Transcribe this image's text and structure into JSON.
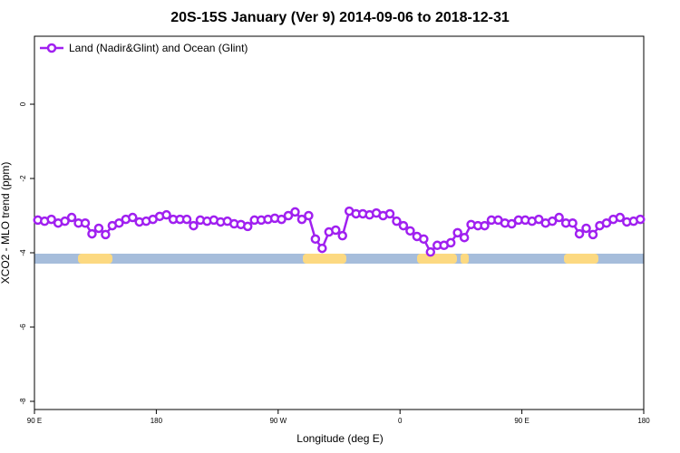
{
  "chart_data": {
    "type": "line",
    "title": "20S-15S January (Ver 9)   2014-09-06 to 2018-12-31",
    "x_label": "Longitude (deg E)",
    "y_label": "XCO2 - MLO trend (ppm)",
    "xlim": [
      90,
      540
    ],
    "ylim": [
      -8.22,
      1.83
    ],
    "xticks": [
      {
        "value": 90,
        "label": "90 E"
      },
      180,
      {
        "value": 270,
        "label": "90 W"
      },
      {
        "value": 360,
        "label": "0"
      },
      {
        "value": 450,
        "label": "90 E"
      },
      {
        "value": 540,
        "label": "180"
      }
    ],
    "yticks": [
      0,
      -2,
      -4,
      -6,
      -8
    ],
    "legend": "top-left",
    "x": [
      92.5,
      97.5,
      102.5,
      107.5,
      112.5,
      117.5,
      122.5,
      127.5,
      132.5,
      137.5,
      142.5,
      147.5,
      152.5,
      157.5,
      162.5,
      167.5,
      172.5,
      177.5,
      182.5,
      187.5,
      192.5,
      197.5,
      202.5,
      207.5,
      212.5,
      217.5,
      222.5,
      227.5,
      232.5,
      237.5,
      242.5,
      247.5,
      252.5,
      257.5,
      262.5,
      267.5,
      272.5,
      277.5,
      282.5,
      287.5,
      292.5,
      297.5,
      302.5,
      307.5,
      312.5,
      317.5,
      322.5,
      327.5,
      332.5,
      337.5,
      342.5,
      347.5,
      352.5,
      357.5,
      362.5,
      367.5,
      372.5,
      377.5,
      382.5,
      387.5,
      392.5,
      397.5,
      402.5,
      407.5,
      412.5,
      417.5,
      422.5,
      427.5,
      432.5,
      437.5,
      442.5,
      447.5,
      452.5,
      457.5,
      462.5,
      467.5,
      472.5,
      477.5,
      482.5,
      487.5,
      492.5,
      497.5,
      502.5,
      507.5,
      512.5,
      517.5,
      522.5,
      527.5,
      532.5,
      537.5
    ],
    "series": [
      {
        "name": "Land (Nadir&Glint) and Ocean (Glint)",
        "color": "#a020f0",
        "values": [
          -3.12,
          -3.15,
          -3.1,
          -3.2,
          -3.15,
          -3.05,
          -3.2,
          -3.2,
          -3.49,
          -3.34,
          -3.51,
          -3.27,
          -3.2,
          -3.1,
          -3.05,
          -3.17,
          -3.15,
          -3.1,
          -3.02,
          -2.98,
          -3.1,
          -3.1,
          -3.1,
          -3.27,
          -3.12,
          -3.15,
          -3.12,
          -3.17,
          -3.15,
          -3.22,
          -3.24,
          -3.29,
          -3.12,
          -3.12,
          -3.1,
          -3.07,
          -3.1,
          -3.0,
          -2.9,
          -3.1,
          -3.0,
          -3.63,
          -3.88,
          -3.44,
          -3.39,
          -3.54,
          -2.88,
          -2.95,
          -2.95,
          -2.98,
          -2.93,
          -3.0,
          -2.95,
          -3.15,
          -3.27,
          -3.41,
          -3.56,
          -3.63,
          -3.98,
          -3.8,
          -3.8,
          -3.73,
          -3.46,
          -3.59,
          -3.24,
          -3.27,
          -3.27,
          -3.12,
          -3.12,
          -3.2,
          -3.22,
          -3.12,
          -3.12,
          -3.15,
          -3.1,
          -3.2,
          -3.15,
          -3.05,
          -3.2,
          -3.2,
          -3.49,
          -3.34,
          -3.51,
          -3.27,
          -3.2,
          -3.1,
          -3.05,
          -3.17,
          -3.15,
          -3.1
        ]
      }
    ]
  }
}
